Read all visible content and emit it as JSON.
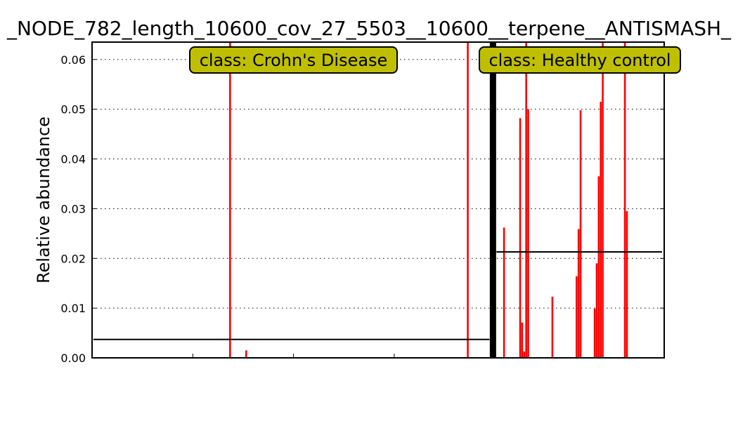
{
  "chart_data": {
    "type": "bar",
    "title": "_NODE_782_length_10600_cov_27_5503__10600__terpene__ANTISMASH_",
    "xlabel": "",
    "ylabel": "Relative abundance",
    "ylim": [
      0,
      0.0635
    ],
    "yticks": [
      "0.00",
      "0.01",
      "0.02",
      "0.03",
      "0.04",
      "0.05",
      "0.06"
    ],
    "grid": "horizontal-dotted",
    "bar_color": "#ff0000",
    "n_samples": 284,
    "divider_index": 198.5,
    "groups": [
      {
        "label": "class: Crohn's Disease",
        "mean": 0.0037,
        "range": [
          0,
          197
        ]
      },
      {
        "label": "class: Healthy control",
        "mean": 0.0213,
        "range": [
          199,
          283
        ]
      }
    ],
    "group_box_color": "#bfbf00",
    "bars": [
      {
        "x": 68,
        "y": 0.0635
      },
      {
        "x": 76,
        "y": 0.0015
      },
      {
        "x": 186,
        "y": 0.0635
      },
      {
        "x": 204,
        "y": 0.0262
      },
      {
        "x": 212,
        "y": 0.0482
      },
      {
        "x": 213,
        "y": 0.0071
      },
      {
        "x": 214,
        "y": 0.0013
      },
      {
        "x": 215,
        "y": 0.0635
      },
      {
        "x": 216,
        "y": 0.05
      },
      {
        "x": 228,
        "y": 0.0123
      },
      {
        "x": 240,
        "y": 0.0164
      },
      {
        "x": 241,
        "y": 0.0259
      },
      {
        "x": 242,
        "y": 0.0498
      },
      {
        "x": 249,
        "y": 0.0099
      },
      {
        "x": 250,
        "y": 0.019
      },
      {
        "x": 251,
        "y": 0.0365
      },
      {
        "x": 252,
        "y": 0.0515
      },
      {
        "x": 253,
        "y": 0.0635
      },
      {
        "x": 264,
        "y": 0.0635
      },
      {
        "x": 265,
        "y": 0.0295
      }
    ]
  }
}
